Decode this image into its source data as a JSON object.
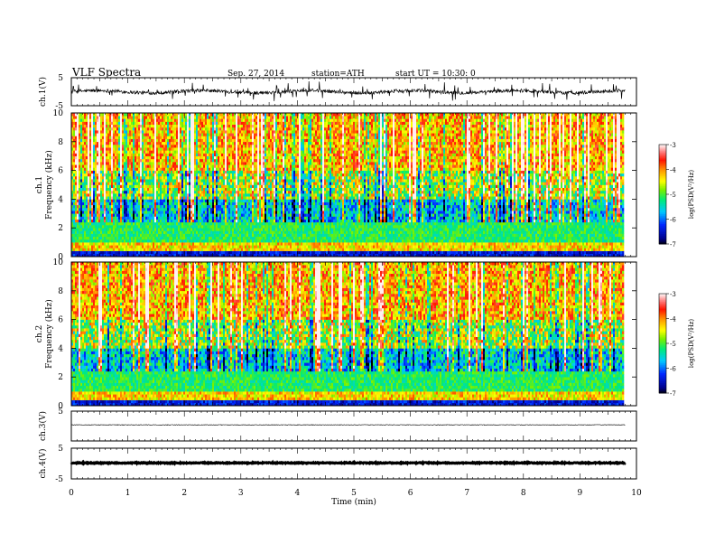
{
  "header": {
    "title": "VLF  Spectra",
    "date": "Sep. 27, 2014",
    "station": "station=ATH",
    "start": "start  UT  =   10:30: 0"
  },
  "chart_data": [
    {
      "type": "line",
      "name": "ch1-waveform",
      "ylabel": "ch.1(V)",
      "ylim": [
        -5,
        5
      ],
      "yticks": [
        "5",
        "-5"
      ],
      "xlim": [
        0,
        10
      ],
      "data_end": 9.8,
      "center": 0.0,
      "base_amplitude": 0.6,
      "spikes_amplitude": 1.6,
      "color": "#000000"
    },
    {
      "type": "heatmap",
      "name": "ch1-spectrogram",
      "ylabel": "ch.1\nFrequency (kHz)",
      "ylabel_line1": "ch.1",
      "ylabel_line2": "Frequency  (kHz)",
      "ylim": [
        0,
        10
      ],
      "yticks": [
        "0",
        "2",
        "4",
        "6",
        "8",
        "10"
      ],
      "xlim": [
        0,
        10
      ],
      "data_end": 9.8,
      "colorbar": {
        "label": "log(PSD(V²/Hz)",
        "range": [
          -7,
          -3
        ],
        "ticks": [
          "-3",
          "-4",
          "-5",
          "-6",
          "-7"
        ]
      }
    },
    {
      "type": "heatmap",
      "name": "ch2-spectrogram",
      "ylabel_line1": "ch.2",
      "ylabel_line2": "Frequency  (kHz)",
      "ylim": [
        0,
        10
      ],
      "yticks": [
        "0",
        "2",
        "4",
        "6",
        "8",
        "10"
      ],
      "xlim": [
        0,
        10
      ],
      "data_end": 9.8,
      "colorbar": {
        "label": "log(PSD(V²/Hz)",
        "range": [
          -7,
          -3
        ],
        "ticks": [
          "-3",
          "-4",
          "-5",
          "-6",
          "-7"
        ]
      }
    },
    {
      "type": "line",
      "name": "ch3-waveform",
      "ylabel": "ch.3(V)",
      "ylim": [
        -5,
        5
      ],
      "yticks": [
        "5"
      ],
      "xlim": [
        0,
        10
      ],
      "data_end": 9.8,
      "center": 0.4,
      "base_amplitude": 0.1,
      "color": "#000000"
    },
    {
      "type": "line",
      "name": "ch4-waveform",
      "ylabel": "ch.4(V)",
      "ylim": [
        -5,
        5
      ],
      "yticks": [
        "5",
        "-5"
      ],
      "xlim": [
        0,
        10
      ],
      "data_end": 9.8,
      "center": 0.2,
      "base_amplitude": 0.15,
      "color": "#000000"
    }
  ],
  "xaxis": {
    "label": "Time  (min)",
    "ticks": [
      "0",
      "1",
      "2",
      "3",
      "4",
      "5",
      "6",
      "7",
      "8",
      "9",
      "10"
    ],
    "range": [
      0,
      10
    ]
  }
}
